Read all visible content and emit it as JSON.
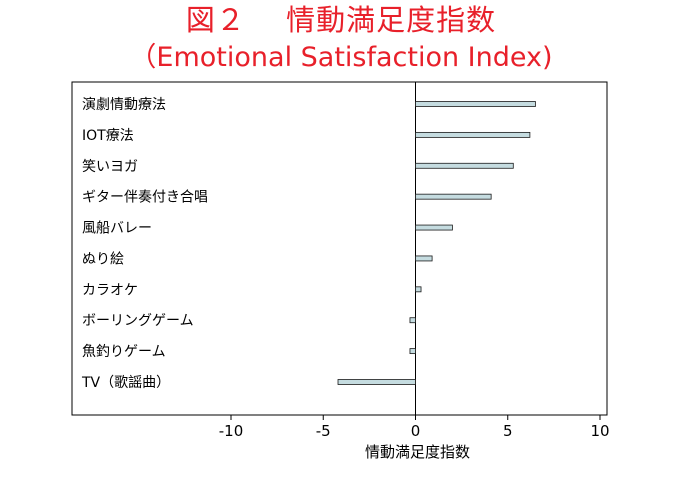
{
  "title": "図２　 情動満足度指数",
  "subtitle": "（Emotional Satisfaction  Index)",
  "colors": {
    "title": "#e8202a",
    "bar_fill": "#c5dce0",
    "bar_stroke": "#1a1a1a",
    "axis": "#000000"
  },
  "chart_data": {
    "type": "bar",
    "orientation": "horizontal",
    "categories": [
      "演劇情動療法",
      "IOT療法",
      "笑いヨガ",
      "ギター伴奏付き合唱",
      "風船バレー",
      "ぬり絵",
      "カラオケ",
      "ボーリングゲーム",
      "魚釣りゲーム",
      "TV（歌謡曲）"
    ],
    "values": [
      6.5,
      6.2,
      5.3,
      4.1,
      2.0,
      0.9,
      0.3,
      -0.3,
      -0.3,
      -4.2
    ],
    "xlabel": "情動満足度指数",
    "ylabel": "",
    "xlim": [
      -10,
      10
    ],
    "xticks": [
      -10,
      -5,
      0,
      5,
      10
    ],
    "grid": false
  }
}
